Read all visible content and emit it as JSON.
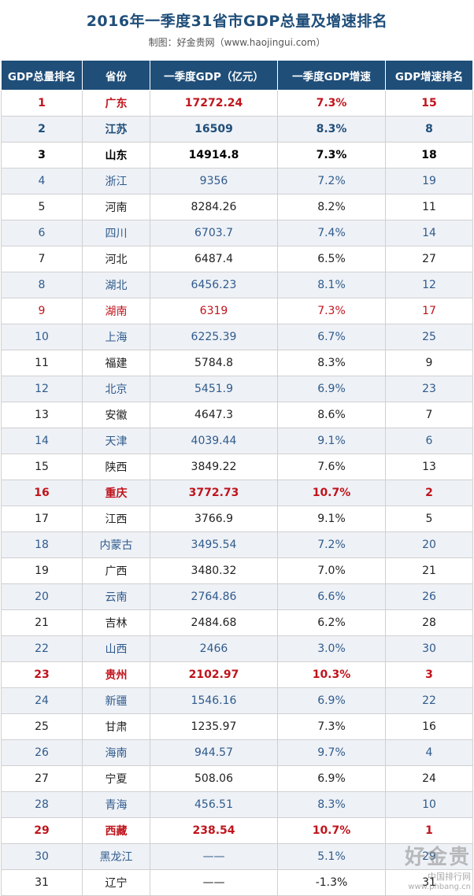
{
  "header": {
    "title": "2016年一季度31省市GDP总量及增速排名",
    "subtitle": "制图：好金贵网（www.haojingui.com）"
  },
  "columns": [
    "GDP总量排名",
    "省份",
    "一季度GDP（亿元）",
    "一季度GDP增速",
    "GDP增速排名"
  ],
  "rows": [
    {
      "rank": "1",
      "province": "广东",
      "gdp": "17272.24",
      "growth": "7.3%",
      "growth_rank": "15",
      "style": "redb"
    },
    {
      "rank": "2",
      "province": "江苏",
      "gdp": "16509",
      "growth": "8.3%",
      "growth_rank": "8",
      "style": "blueb"
    },
    {
      "rank": "3",
      "province": "山东",
      "gdp": "14914.8",
      "growth": "7.3%",
      "growth_rank": "18",
      "style": "blackb"
    },
    {
      "rank": "4",
      "province": "浙江",
      "gdp": "9356",
      "growth": "7.2%",
      "growth_rank": "19",
      "style": "blue"
    },
    {
      "rank": "5",
      "province": "河南",
      "gdp": "8284.26",
      "growth": "8.2%",
      "growth_rank": "11",
      "style": "black"
    },
    {
      "rank": "6",
      "province": "四川",
      "gdp": "6703.7",
      "growth": "7.4%",
      "growth_rank": "14",
      "style": "blue"
    },
    {
      "rank": "7",
      "province": "河北",
      "gdp": "6487.4",
      "growth": "6.5%",
      "growth_rank": "27",
      "style": "black"
    },
    {
      "rank": "8",
      "province": "湖北",
      "gdp": "6456.23",
      "growth": "8.1%",
      "growth_rank": "12",
      "style": "blue"
    },
    {
      "rank": "9",
      "province": "湖南",
      "gdp": "6319",
      "growth": "7.3%",
      "growth_rank": "17",
      "style": "red"
    },
    {
      "rank": "10",
      "province": "上海",
      "gdp": "6225.39",
      "growth": "6.7%",
      "growth_rank": "25",
      "style": "blue"
    },
    {
      "rank": "11",
      "province": "福建",
      "gdp": "5784.8",
      "growth": "8.3%",
      "growth_rank": "9",
      "style": "black"
    },
    {
      "rank": "12",
      "province": "北京",
      "gdp": "5451.9",
      "growth": "6.9%",
      "growth_rank": "23",
      "style": "blue"
    },
    {
      "rank": "13",
      "province": "安徽",
      "gdp": "4647.3",
      "growth": "8.6%",
      "growth_rank": "7",
      "style": "black"
    },
    {
      "rank": "14",
      "province": "天津",
      "gdp": "4039.44",
      "growth": "9.1%",
      "growth_rank": "6",
      "style": "blue"
    },
    {
      "rank": "15",
      "province": "陕西",
      "gdp": "3849.22",
      "growth": "7.6%",
      "growth_rank": "13",
      "style": "black"
    },
    {
      "rank": "16",
      "province": "重庆",
      "gdp": "3772.73",
      "growth": "10.7%",
      "growth_rank": "2",
      "style": "redb"
    },
    {
      "rank": "17",
      "province": "江西",
      "gdp": "3766.9",
      "growth": "9.1%",
      "growth_rank": "5",
      "style": "black"
    },
    {
      "rank": "18",
      "province": "内蒙古",
      "gdp": "3495.54",
      "growth": "7.2%",
      "growth_rank": "20",
      "style": "blue"
    },
    {
      "rank": "19",
      "province": "广西",
      "gdp": "3480.32",
      "growth": "7.0%",
      "growth_rank": "21",
      "style": "black"
    },
    {
      "rank": "20",
      "province": "云南",
      "gdp": "2764.86",
      "growth": "6.6%",
      "growth_rank": "26",
      "style": "blue"
    },
    {
      "rank": "21",
      "province": "吉林",
      "gdp": "2484.68",
      "growth": "6.2%",
      "growth_rank": "28",
      "style": "black"
    },
    {
      "rank": "22",
      "province": "山西",
      "gdp": "2466",
      "growth": "3.0%",
      "growth_rank": "30",
      "style": "blue"
    },
    {
      "rank": "23",
      "province": "贵州",
      "gdp": "2102.97",
      "growth": "10.3%",
      "growth_rank": "3",
      "style": "redb"
    },
    {
      "rank": "24",
      "province": "新疆",
      "gdp": "1546.16",
      "growth": "6.9%",
      "growth_rank": "22",
      "style": "blue"
    },
    {
      "rank": "25",
      "province": "甘肃",
      "gdp": "1235.97",
      "growth": "7.3%",
      "growth_rank": "16",
      "style": "black"
    },
    {
      "rank": "26",
      "province": "海南",
      "gdp": "944.57",
      "growth": "9.7%",
      "growth_rank": "4",
      "style": "blue"
    },
    {
      "rank": "27",
      "province": "宁夏",
      "gdp": "508.06",
      "growth": "6.9%",
      "growth_rank": "24",
      "style": "black"
    },
    {
      "rank": "28",
      "province": "青海",
      "gdp": "456.51",
      "growth": "8.3%",
      "growth_rank": "10",
      "style": "blue"
    },
    {
      "rank": "29",
      "province": "西藏",
      "gdp": "238.54",
      "growth": "10.7%",
      "growth_rank": "1",
      "style": "redb"
    },
    {
      "rank": "30",
      "province": "黑龙江",
      "gdp": "——",
      "growth": "5.1%",
      "growth_rank": "29",
      "style": "blue"
    },
    {
      "rank": "31",
      "province": "辽宁",
      "gdp": "——",
      "growth": "-1.3%",
      "growth_rank": "31",
      "style": "black"
    }
  ],
  "watermark": {
    "logo": "好金贵",
    "site_cn": "中国排行网",
    "url": "www.phbang.cn"
  },
  "colors": {
    "header_bg": "#1f4e79",
    "title": "#1f4e79",
    "highlight_red": "#c0141c",
    "text_blue": "#2f5b8c",
    "stripe": "#eef1f6"
  }
}
